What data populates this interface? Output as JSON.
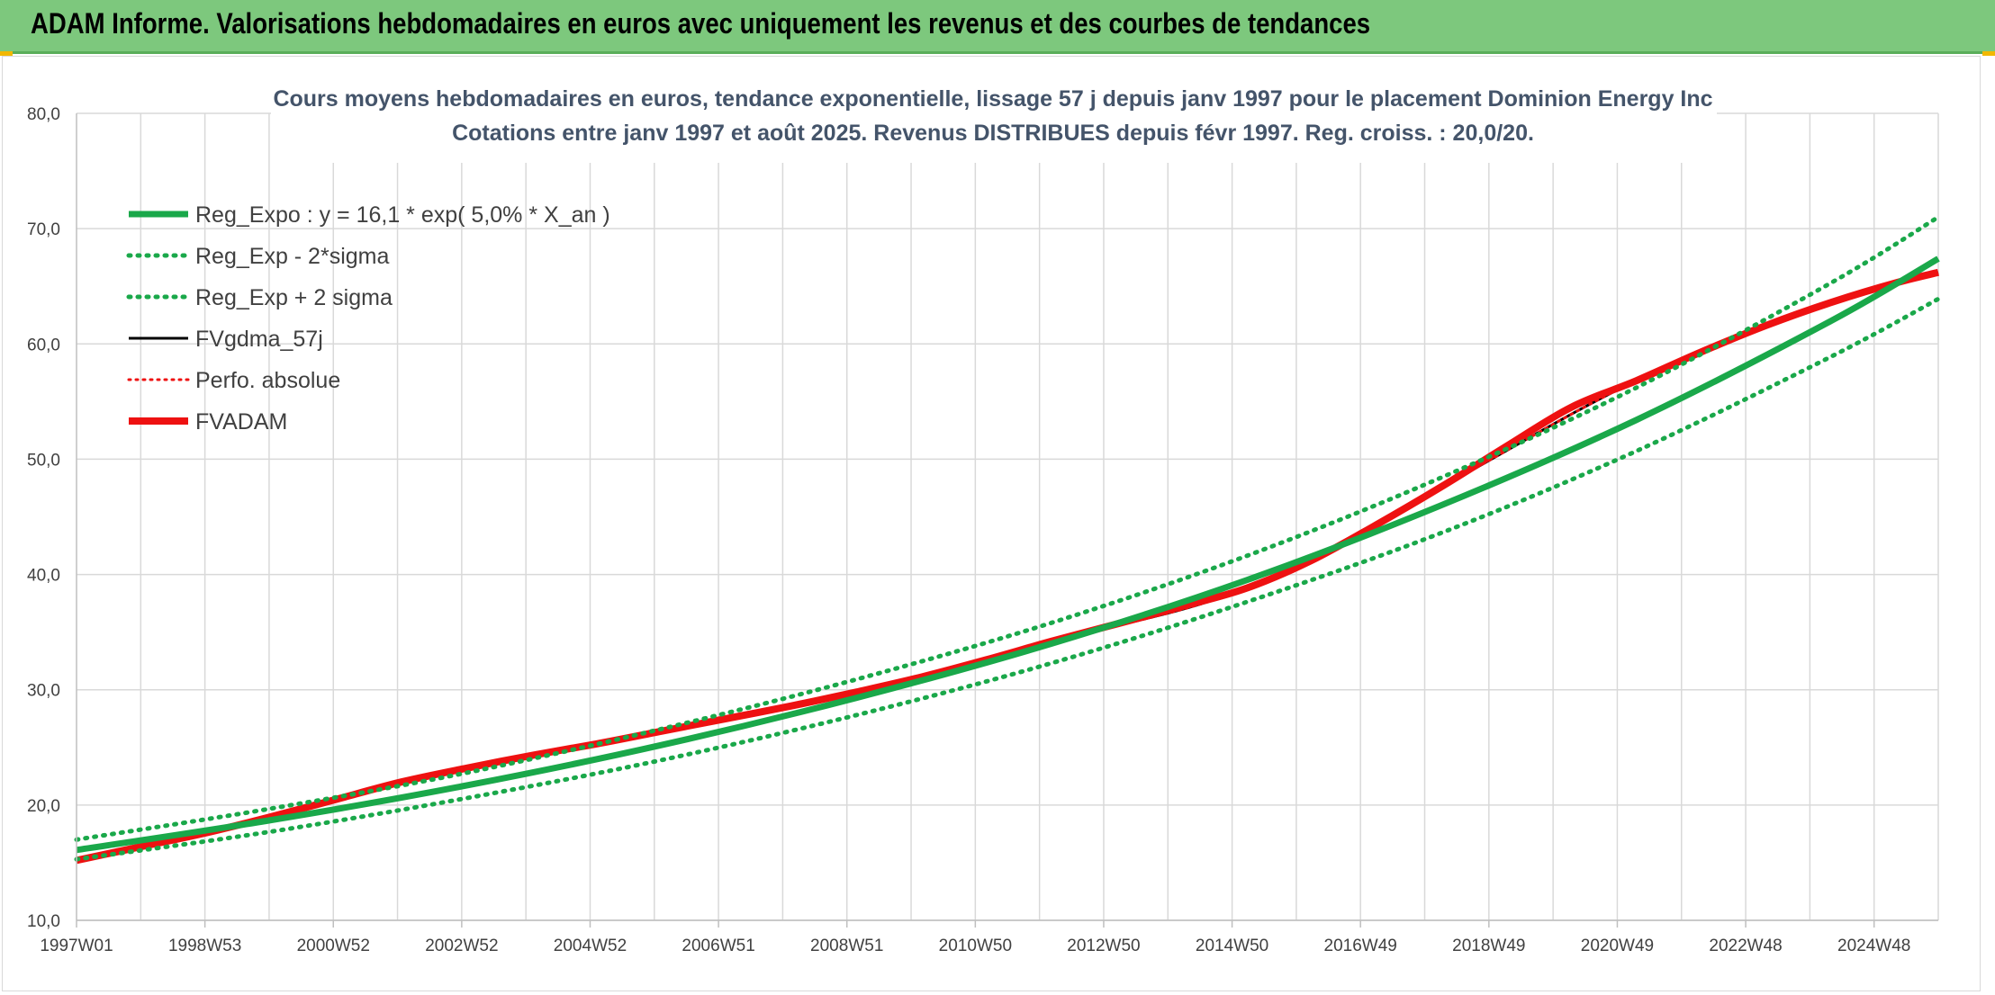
{
  "header": {
    "title": "ADAM Informe. Valorisations hebdomadaires en euros avec uniquement les revenus et des courbes de tendances"
  },
  "colors": {
    "header_bg": "#7dc87d",
    "reg_green": "#1aa84a",
    "adam_red": "#ee1111",
    "black": "#000000",
    "grid": "#d9d9d9",
    "title_text": "#44546a"
  },
  "chart_data": {
    "type": "line",
    "title": "Cours moyens hebdomadaires en euros, tendance exponentielle, lissage 57 j depuis janv 1997 pour le placement Dominion Energy Inc",
    "subtitle": "Cotations entre janv 1997 et août 2025. Revenus DISTRIBUES depuis févr 1997. Reg. croiss. : 20,0/20.",
    "xlabel": "",
    "ylabel": "",
    "ylim": [
      10,
      80
    ],
    "y_ticks": [
      "10,0",
      "20,0",
      "30,0",
      "40,0",
      "50,0",
      "60,0",
      "70,0",
      "80,0"
    ],
    "x_ticks": [
      "1997W01",
      "1998W53",
      "2000W52",
      "2002W52",
      "2004W52",
      "2006W51",
      "2008W51",
      "2010W50",
      "2012W50",
      "2014W50",
      "2016W49",
      "2018W49",
      "2020W49",
      "2022W48",
      "2024W48"
    ],
    "x_range_years": [
      1997.0,
      2025.65
    ],
    "grid": true,
    "legend_position": "top-left",
    "series": [
      {
        "name": "Reg_Expo : y = 16,1 * exp( 5,0% *  X_an )",
        "style": "solid-green-thick",
        "x": [
          1997.0,
          2000.0,
          2003.0,
          2006.0,
          2009.0,
          2012.0,
          2015.0,
          2018.0,
          2021.0,
          2024.0,
          2025.65
        ],
        "values": [
          16.1,
          18.7,
          21.7,
          25.2,
          29.3,
          34.0,
          39.5,
          46.0,
          53.4,
          62.0,
          67.4
        ]
      },
      {
        "name": "Reg_Exp - 2*sigma",
        "style": "dotted-green",
        "x": [
          1997.0,
          2000.0,
          2003.0,
          2006.0,
          2009.0,
          2012.0,
          2015.0,
          2018.0,
          2021.0,
          2024.0,
          2025.65
        ],
        "values": [
          15.3,
          17.7,
          20.6,
          23.9,
          27.8,
          32.3,
          37.6,
          43.6,
          50.7,
          58.9,
          63.9
        ]
      },
      {
        "name": "Reg_Exp + 2 sigma",
        "style": "dotted-green",
        "x": [
          1997.0,
          2000.0,
          2003.0,
          2006.0,
          2009.0,
          2012.0,
          2015.0,
          2018.0,
          2021.0,
          2024.0,
          2025.65
        ],
        "values": [
          17.0,
          19.7,
          22.8,
          26.6,
          30.9,
          35.8,
          41.6,
          48.4,
          56.2,
          65.3,
          71.0
        ]
      },
      {
        "name": "FVgdma_57j",
        "style": "solid-black",
        "x": [
          1997.0,
          2000.0,
          2003.0,
          2006.0,
          2009.0,
          2012.0,
          2015.0,
          2018.0,
          2021.0,
          2024.0,
          2025.65
        ],
        "values": [
          15.2,
          19.0,
          23.2,
          26.4,
          29.8,
          34.2,
          38.8,
          47.6,
          56.8,
          63.6,
          66.2
        ]
      },
      {
        "name": "Perfo. absolue",
        "style": "dotted-red",
        "x": [
          1997.0,
          2000.0,
          2003.0,
          2006.0,
          2009.0,
          2012.0,
          2015.0,
          2018.0,
          2021.0,
          2024.0,
          2025.65
        ],
        "values": [
          15.2,
          19.0,
          23.2,
          26.4,
          29.8,
          34.2,
          38.8,
          47.6,
          56.8,
          63.6,
          66.2
        ]
      },
      {
        "name": "FVADAM",
        "style": "solid-red-thick",
        "x": [
          1997.0,
          1998.0,
          1999.0,
          2000.0,
          2001.0,
          2002.0,
          2003.0,
          2004.0,
          2005.0,
          2006.0,
          2007.0,
          2008.0,
          2009.0,
          2010.0,
          2011.0,
          2012.0,
          2013.0,
          2014.0,
          2015.0,
          2016.0,
          2017.0,
          2018.0,
          2019.0,
          2020.0,
          2021.0,
          2022.0,
          2023.0,
          2024.0,
          2025.0,
          2025.65
        ],
        "values": [
          15.2,
          16.4,
          17.6,
          19.0,
          20.5,
          22.0,
          23.2,
          24.3,
          25.3,
          26.4,
          27.5,
          28.6,
          29.8,
          31.1,
          32.6,
          34.2,
          35.7,
          37.2,
          38.8,
          41.2,
          44.3,
          47.6,
          51.1,
          54.5,
          56.8,
          59.3,
          61.6,
          63.6,
          65.3,
          66.2
        ]
      }
    ]
  }
}
